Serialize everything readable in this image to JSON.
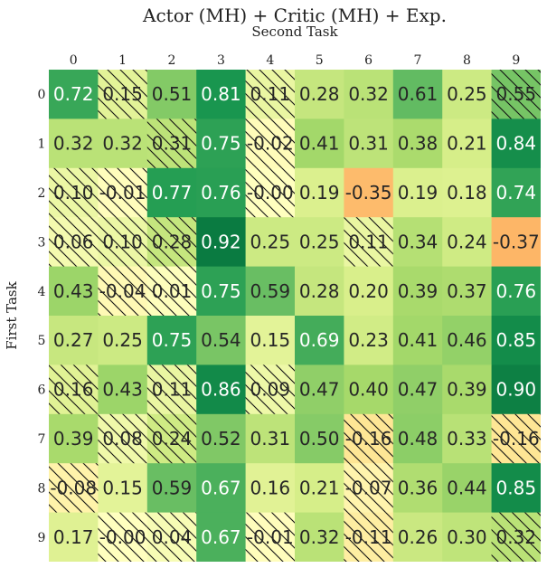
{
  "chart_data": {
    "type": "heatmap",
    "title": "Actor (MH) + Critic (MH) + Exp.",
    "xlabel": "Second Task",
    "ylabel": "First Task",
    "x_categories": [
      "0",
      "1",
      "2",
      "3",
      "4",
      "5",
      "6",
      "7",
      "8",
      "9"
    ],
    "y_categories": [
      "0",
      "1",
      "2",
      "3",
      "4",
      "5",
      "6",
      "7",
      "8",
      "9"
    ],
    "values": [
      [
        0.72,
        0.15,
        0.51,
        0.81,
        0.11,
        0.28,
        0.32,
        0.61,
        0.25,
        0.55
      ],
      [
        0.32,
        0.32,
        0.31,
        0.75,
        -0.02,
        0.41,
        0.31,
        0.38,
        0.21,
        0.84
      ],
      [
        0.1,
        -0.01,
        0.77,
        0.76,
        -0.0,
        0.19,
        -0.35,
        0.19,
        0.18,
        0.74
      ],
      [
        0.06,
        0.1,
        0.28,
        0.92,
        0.25,
        0.25,
        0.11,
        0.34,
        0.24,
        -0.37
      ],
      [
        0.43,
        -0.04,
        0.01,
        0.75,
        0.59,
        0.28,
        0.2,
        0.39,
        0.37,
        0.76
      ],
      [
        0.27,
        0.25,
        0.75,
        0.54,
        0.15,
        0.69,
        0.23,
        0.41,
        0.46,
        0.85
      ],
      [
        0.16,
        0.43,
        0.11,
        0.86,
        0.09,
        0.47,
        0.4,
        0.47,
        0.39,
        0.9
      ],
      [
        0.39,
        0.08,
        0.24,
        0.52,
        0.31,
        0.5,
        -0.16,
        0.48,
        0.33,
        -0.16
      ],
      [
        -0.08,
        0.15,
        0.59,
        0.67,
        0.16,
        0.21,
        -0.07,
        0.36,
        0.44,
        0.85
      ],
      [
        0.17,
        -0.0,
        0.04,
        0.67,
        -0.01,
        0.32,
        -0.11,
        0.26,
        0.3,
        0.32
      ]
    ],
    "labels": [
      [
        "0.72",
        "0.15",
        "0.51",
        "0.81",
        "0.11",
        "0.28",
        "0.32",
        "0.61",
        "0.25",
        "0.55"
      ],
      [
        "0.32",
        "0.32",
        "0.31",
        "0.75",
        "-0.02",
        "0.41",
        "0.31",
        "0.38",
        "0.21",
        "0.84"
      ],
      [
        "0.10",
        "-0.01",
        "0.77",
        "0.76",
        "-0.00",
        "0.19",
        "-0.35",
        "0.19",
        "0.18",
        "0.74"
      ],
      [
        "0.06",
        "0.10",
        "0.28",
        "0.92",
        "0.25",
        "0.25",
        "0.11",
        "0.34",
        "0.24",
        "-0.37"
      ],
      [
        "0.43",
        "-0.04",
        "0.01",
        "0.75",
        "0.59",
        "0.28",
        "0.20",
        "0.39",
        "0.37",
        "0.76"
      ],
      [
        "0.27",
        "0.25",
        "0.75",
        "0.54",
        "0.15",
        "0.69",
        "0.23",
        "0.41",
        "0.46",
        "0.85"
      ],
      [
        "0.16",
        "0.43",
        "0.11",
        "0.86",
        "0.09",
        "0.47",
        "0.40",
        "0.47",
        "0.39",
        "0.90"
      ],
      [
        "0.39",
        "0.08",
        "0.24",
        "0.52",
        "0.31",
        "0.50",
        "-0.16",
        "0.48",
        "0.33",
        "-0.16"
      ],
      [
        "-0.08",
        "0.15",
        "0.59",
        "0.67",
        "0.16",
        "0.21",
        "-0.07",
        "0.36",
        "0.44",
        "0.85"
      ],
      [
        "0.17",
        "-0.00",
        "0.04",
        "0.67",
        "-0.01",
        "0.32",
        "-0.11",
        "0.26",
        "0.30",
        "0.32"
      ]
    ],
    "hatched": [
      [
        false,
        true,
        false,
        false,
        true,
        false,
        false,
        false,
        false,
        true
      ],
      [
        false,
        false,
        true,
        false,
        true,
        false,
        false,
        false,
        false,
        false
      ],
      [
        true,
        true,
        false,
        false,
        true,
        false,
        false,
        false,
        false,
        false
      ],
      [
        true,
        true,
        true,
        false,
        false,
        false,
        true,
        false,
        false,
        false
      ],
      [
        false,
        true,
        true,
        false,
        false,
        false,
        false,
        false,
        false,
        false
      ],
      [
        false,
        false,
        false,
        false,
        false,
        false,
        false,
        false,
        false,
        false
      ],
      [
        true,
        false,
        true,
        false,
        true,
        false,
        false,
        false,
        false,
        false
      ],
      [
        false,
        true,
        true,
        false,
        false,
        false,
        true,
        false,
        false,
        true
      ],
      [
        true,
        false,
        false,
        false,
        false,
        false,
        true,
        false,
        false,
        false
      ],
      [
        false,
        true,
        true,
        false,
        true,
        false,
        true,
        false,
        false,
        true
      ]
    ],
    "colormap": "RdYlGn",
    "value_range": [
      -1,
      1
    ],
    "x_ticks_position": "top",
    "grid": false
  }
}
